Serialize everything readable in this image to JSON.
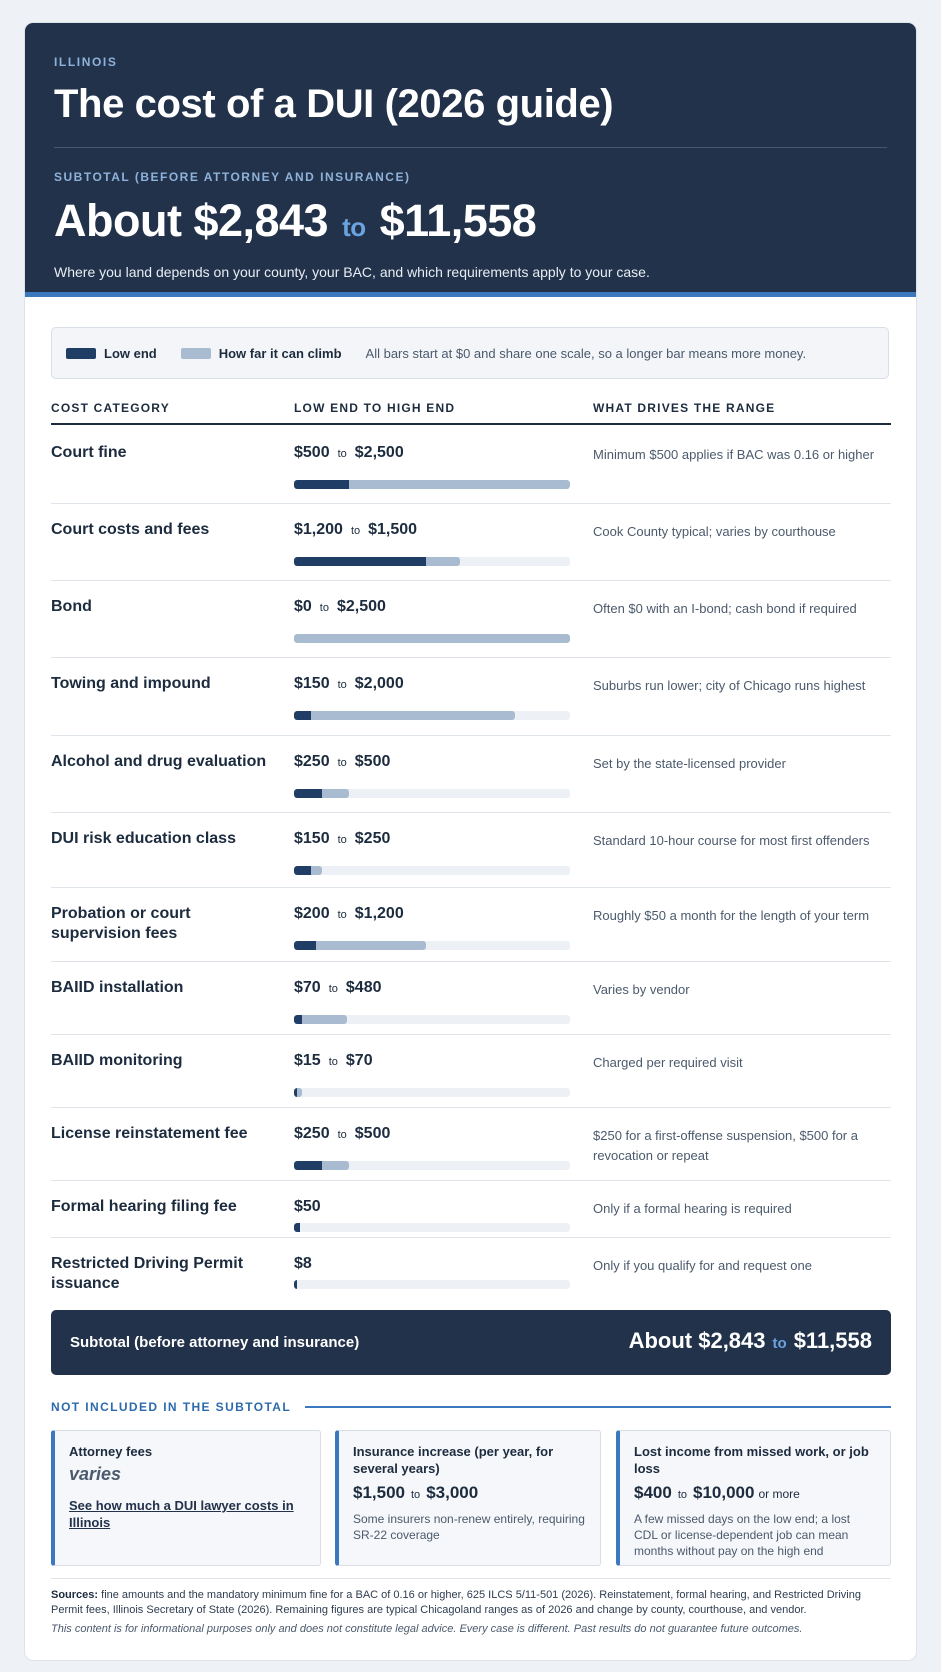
{
  "hero": {
    "eyebrow": "ILLINOIS",
    "title": "The cost of a DUI (2026 guide)",
    "subtotal_label": "SUBTOTAL (BEFORE ATTORNEY AND INSURANCE)",
    "total_prefix": "About $2,843",
    "total_to": "to",
    "total_high": "$11,558",
    "note": "Where you land depends on your county, your BAC, and which requirements apply to your case."
  },
  "legend": {
    "low_label": "Low end",
    "high_label": "How far it can climb",
    "note": "All bars start at $0 and share one scale, so a longer bar means more money.",
    "low_color": "#203d66",
    "high_color": "#a8bbd0"
  },
  "table": {
    "headers": [
      "COST CATEGORY",
      "LOW END TO HIGH END",
      "WHAT DRIVES THE RANGE"
    ],
    "scale_max": 2500,
    "to_label": "to",
    "rows": [
      {
        "category": "Court fine",
        "low_text": "$500",
        "high_text": "$2,500",
        "low": 500,
        "high": 2500,
        "driver": "Minimum $500 applies if BAC was 0.16 or higher"
      },
      {
        "category": "Court costs and fees",
        "low_text": "$1,200",
        "high_text": "$1,500",
        "low": 1200,
        "high": 1500,
        "driver": "Cook County typical; varies by courthouse"
      },
      {
        "category": "Bond",
        "low_text": "$0",
        "high_text": "$2,500",
        "low": 0,
        "high": 2500,
        "driver": "Often $0 with an I-bond; cash bond if required"
      },
      {
        "category": "Towing and impound",
        "low_text": "$150",
        "high_text": "$2,000",
        "low": 150,
        "high": 2000,
        "driver": "Suburbs run lower; city of Chicago runs highest"
      },
      {
        "category": "Alcohol and drug evaluation",
        "low_text": "$250",
        "high_text": "$500",
        "low": 250,
        "high": 500,
        "driver": "Set by the state-licensed provider"
      },
      {
        "category": "DUI risk education class",
        "low_text": "$150",
        "high_text": "$250",
        "low": 150,
        "high": 250,
        "driver": "Standard 10-hour course for most first offenders"
      },
      {
        "category": "Probation or court supervision fees",
        "low_text": "$200",
        "high_text": "$1,200",
        "low": 200,
        "high": 1200,
        "driver": "Roughly $50 a month for the length of your term"
      },
      {
        "category": "BAIID installation",
        "low_text": "$70",
        "high_text": "$480",
        "low": 70,
        "high": 480,
        "driver": "Varies by vendor"
      },
      {
        "category": "BAIID monitoring",
        "low_text": "$15",
        "high_text": "$70",
        "low": 15,
        "high": 70,
        "driver": "Charged per required visit"
      },
      {
        "category": "License reinstatement fee",
        "low_text": "$250",
        "high_text": "$500",
        "low": 250,
        "high": 500,
        "driver": "$250 for a first-offense suspension, $500 for a revocation or repeat"
      },
      {
        "category": "Formal hearing filing fee",
        "low_text": "$50",
        "high_text": "",
        "low": 50,
        "high": 50,
        "driver": "Only if a formal hearing is required"
      },
      {
        "category": "Restricted Driving Permit issuance",
        "low_text": "$8",
        "high_text": "",
        "low": 8,
        "high": 8,
        "driver": "Only if you qualify for and request one"
      }
    ]
  },
  "subtotal": {
    "label": "Subtotal (before attorney and insurance)",
    "value_low": "About $2,843",
    "to": "to",
    "value_high": "$11,558"
  },
  "not_included": {
    "heading": "NOT INCLUDED IN THE SUBTOTAL",
    "attorney": {
      "title": "Attorney fees",
      "value": "varies",
      "link": "See how much a DUI lawyer costs in Illinois"
    },
    "insurance": {
      "title": "Insurance increase (per year, for several years)",
      "low": "$1,500",
      "to": "to",
      "high": "$3,000",
      "note": "Some insurers non-renew entirely, requiring SR-22 coverage"
    },
    "income": {
      "title": "Lost income from missed work, or job loss",
      "low": "$400",
      "to": "to",
      "high": "$10,000",
      "more": "or more",
      "note": "A few missed days on the low end; a lost CDL or license-dependent job can mean months without pay on the high end"
    }
  },
  "footer": {
    "sources_label": "Sources:",
    "sources_text": " fine amounts and the mandatory minimum fine for a BAC of 0.16 or higher, 625 ILCS 5/11-501 (2026). Reinstatement, formal hearing, and Restricted Driving Permit fees, Illinois Secretary of State (2026). Remaining figures are typical Chicagoland ranges as of 2026 and change by county, courthouse, and vendor.",
    "disclaimer": "This content is for informational purposes only and does not constitute legal advice. Every case is different. Past results do not guarantee future outcomes."
  }
}
